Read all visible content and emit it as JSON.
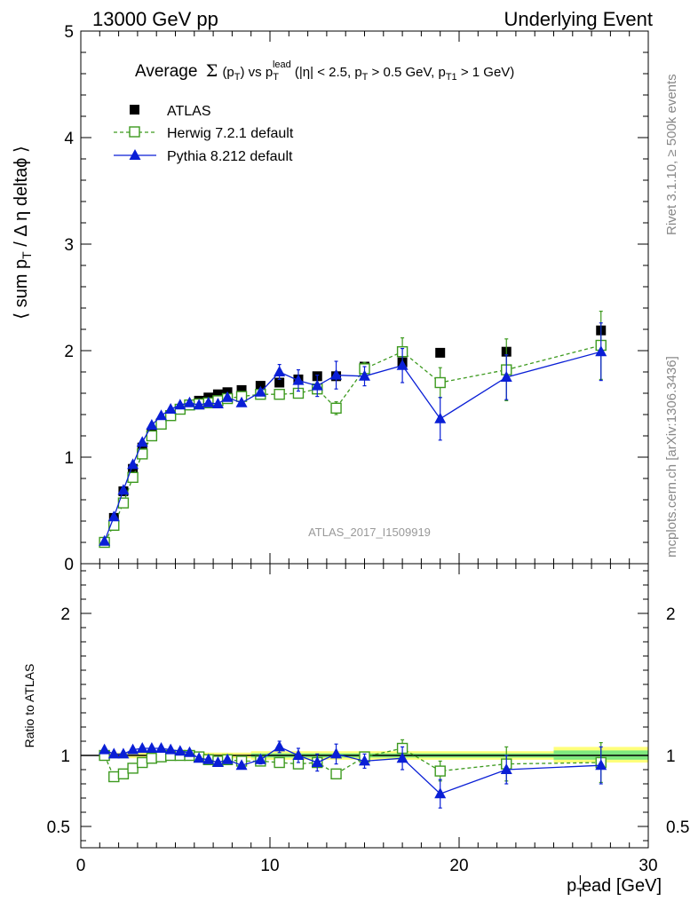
{
  "header": {
    "left": "13000 GeV pp",
    "right": "Underlying Event",
    "rivet": "Rivet 3.1.10, ≥ 500k events",
    "mcplots": "mcplots.cern.ch [arXiv:1306.3436]",
    "analysis": "ATLAS_2017_I1509919"
  },
  "labels": {
    "title": "Average Σ(pT) vs pTlead (|η| < 2.5, pT > 0.5 GeV, pT1 > 1 GeV)",
    "title_main": "Average",
    "title_sigma": "Σ",
    "title_rest1": "(p",
    "title_rest1_sub": "T",
    "title_rest2": ") vs p",
    "title_rest2_sub": "T",
    "title_rest2_sup": "lead",
    "title_rest3": " (|η| < 2.5, p",
    "title_rest3_sub": "T",
    "title_rest4": " > 0.5 GeV, p",
    "title_rest4_sub": "T1",
    "title_rest5": " > 1 GeV)",
    "ylabel_main": "⟨ sum p",
    "ylabel_sub": "T",
    "ylabel_rest": " / Δ η deltaϕ ⟩",
    "ylabel_ratio": "Ratio to ATLAS",
    "xlabel_main": "p",
    "xlabel_sub": "T",
    "xlabel_sup": "l",
    "xlabel_rest": "ead [GeV]"
  },
  "colors": {
    "atlas": "#000000",
    "herwig": "#3d9a1f",
    "pythia": "#0a1fd6",
    "band_inner": "#7fe87f",
    "band_outer": "#ffff7a"
  },
  "chart_data": {
    "type": "scatter",
    "xlim": [
      0,
      30
    ],
    "ylim_main": [
      0,
      5
    ],
    "ylim_ratio": [
      0.35,
      2.35
    ],
    "main_yticks": [
      "0",
      "1",
      "2",
      "3",
      "4",
      "5"
    ],
    "ratio_yticks": [
      "0.5",
      "1",
      "2"
    ],
    "xticks": [
      "0",
      "10",
      "20",
      "30"
    ],
    "x": [
      1.25,
      1.75,
      2.25,
      2.75,
      3.25,
      3.75,
      4.25,
      4.75,
      5.25,
      5.75,
      6.25,
      6.75,
      7.25,
      7.75,
      8.5,
      9.5,
      10.5,
      11.5,
      12.5,
      13.5,
      15,
      17,
      19,
      22.5,
      27.5
    ],
    "series": [
      {
        "name": "ATLAS",
        "marker": "square",
        "values": [
          0.2,
          0.43,
          0.68,
          0.89,
          1.09,
          1.23,
          1.32,
          1.39,
          1.45,
          1.49,
          1.53,
          1.56,
          1.59,
          1.61,
          1.63,
          1.67,
          1.7,
          1.73,
          1.76,
          1.76,
          1.85,
          1.89,
          1.98,
          1.99,
          2.19
        ]
      },
      {
        "name": "Herwig 7.2.1 default",
        "marker": "open-square",
        "line": "dashed",
        "values": [
          0.2,
          0.36,
          0.57,
          0.81,
          1.03,
          1.2,
          1.31,
          1.39,
          1.45,
          1.49,
          1.5,
          1.51,
          1.53,
          1.55,
          1.57,
          1.59,
          1.59,
          1.6,
          1.64,
          1.46,
          1.83,
          1.99,
          1.7,
          1.82,
          2.05
        ],
        "errors": [
          0.01,
          0.01,
          0.01,
          0.01,
          0.01,
          0.01,
          0.01,
          0.01,
          0.01,
          0.01,
          0.01,
          0.01,
          0.01,
          0.01,
          0.02,
          0.02,
          0.02,
          0.03,
          0.04,
          0.06,
          0.06,
          0.13,
          0.14,
          0.29,
          0.32
        ],
        "ratio": [
          1.0,
          0.85,
          0.87,
          0.91,
          0.95,
          0.98,
          0.99,
          1.0,
          1.0,
          1.0,
          0.99,
          0.97,
          0.96,
          0.97,
          0.96,
          0.96,
          0.95,
          0.94,
          0.95,
          0.87,
          0.99,
          1.05,
          0.89,
          0.94,
          0.95
        ],
        "ratio_errors": [
          0.02,
          0.02,
          0.02,
          0.02,
          0.02,
          0.02,
          0.01,
          0.01,
          0.01,
          0.01,
          0.01,
          0.01,
          0.01,
          0.01,
          0.01,
          0.01,
          0.02,
          0.02,
          0.03,
          0.03,
          0.03,
          0.06,
          0.07,
          0.12,
          0.14
        ]
      },
      {
        "name": "Pythia 8.212 default",
        "marker": "triangle",
        "line": "solid",
        "values": [
          0.21,
          0.44,
          0.69,
          0.93,
          1.14,
          1.3,
          1.39,
          1.45,
          1.49,
          1.51,
          1.49,
          1.51,
          1.5,
          1.56,
          1.51,
          1.61,
          1.8,
          1.72,
          1.67,
          1.77,
          1.76,
          1.86,
          1.36,
          1.75,
          1.99
        ],
        "errors": [
          0.01,
          0.01,
          0.01,
          0.01,
          0.01,
          0.01,
          0.01,
          0.01,
          0.01,
          0.01,
          0.01,
          0.01,
          0.01,
          0.02,
          0.02,
          0.03,
          0.07,
          0.1,
          0.1,
          0.13,
          0.09,
          0.16,
          0.2,
          0.21,
          0.27
        ],
        "ratio": [
          1.04,
          1.01,
          1.01,
          1.04,
          1.05,
          1.05,
          1.05,
          1.04,
          1.03,
          1.02,
          0.98,
          0.97,
          0.95,
          0.97,
          0.93,
          0.97,
          1.06,
          1.0,
          0.95,
          1.01,
          0.96,
          0.98,
          0.73,
          0.9,
          0.93
        ],
        "ratio_errors": [
          0.01,
          0.01,
          0.01,
          0.01,
          0.01,
          0.01,
          0.01,
          0.01,
          0.01,
          0.01,
          0.01,
          0.01,
          0.01,
          0.01,
          0.02,
          0.03,
          0.04,
          0.05,
          0.06,
          0.07,
          0.05,
          0.08,
          0.1,
          0.1,
          0.13
        ]
      }
    ],
    "legend": [
      "ATLAS",
      "Herwig 7.2.1 default",
      "Pythia 8.212 default"
    ],
    "legend_position": "top-left",
    "reference_band": "yellow/green uncertainty band around ratio 1"
  }
}
